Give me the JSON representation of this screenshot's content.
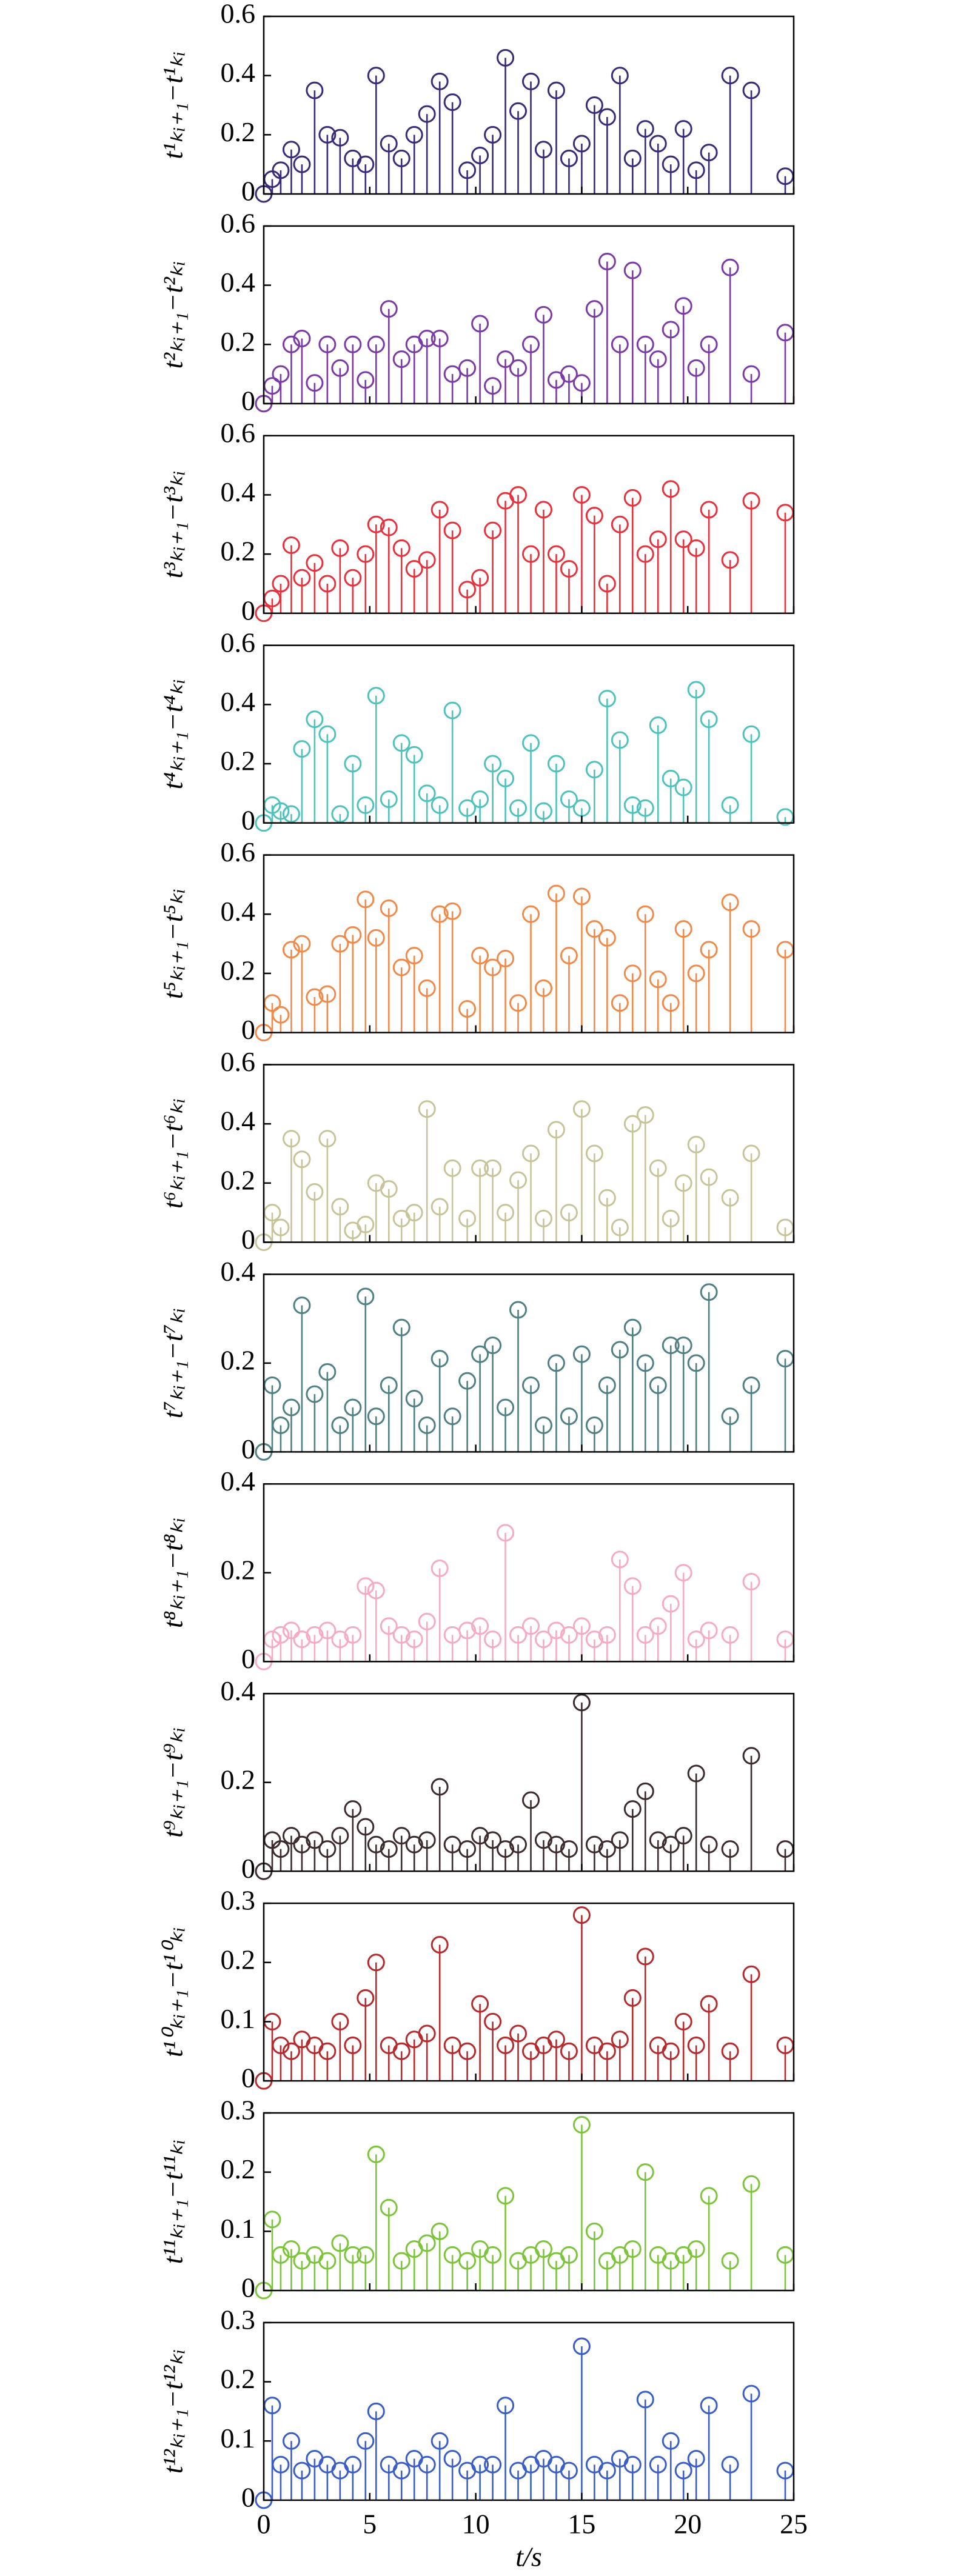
{
  "chart_data": [
    {
      "type": "stem",
      "ylabel": "t¹ₖᵢ₊₁−t¹ₖᵢ",
      "color": "#3b2a7a",
      "xlim": [
        0,
        25
      ],
      "xticks": [
        0,
        5,
        10,
        15,
        20,
        25
      ],
      "ylim": [
        0,
        0.6
      ],
      "yticks": [
        0,
        0.2,
        0.4,
        0.6
      ],
      "x": [
        0,
        0.4,
        0.8,
        1.3,
        1.8,
        2.4,
        3,
        3.6,
        4.2,
        4.8,
        5.3,
        5.9,
        6.5,
        7.1,
        7.7,
        8.3,
        8.9,
        9.6,
        10.2,
        10.8,
        11.4,
        12,
        12.6,
        13.2,
        13.8,
        14.4,
        15,
        15.6,
        16.2,
        16.8,
        17.4,
        18,
        18.6,
        19.2,
        19.8,
        20.4,
        21,
        22,
        23,
        24.6
      ],
      "values": [
        0,
        0.05,
        0.08,
        0.15,
        0.1,
        0.35,
        0.2,
        0.19,
        0.12,
        0.1,
        0.4,
        0.17,
        0.12,
        0.2,
        0.27,
        0.38,
        0.31,
        0.08,
        0.13,
        0.2,
        0.46,
        0.28,
        0.38,
        0.15,
        0.35,
        0.12,
        0.17,
        0.3,
        0.26,
        0.4,
        0.12,
        0.22,
        0.17,
        0.1,
        0.22,
        0.08,
        0.14,
        0.4,
        0.35,
        0.06
      ]
    },
    {
      "type": "stem",
      "ylabel": "t²ₖᵢ₊₁−t²ₖᵢ",
      "color": "#7b3aa6",
      "xlim": [
        0,
        25
      ],
      "xticks": [
        0,
        5,
        10,
        15,
        20,
        25
      ],
      "ylim": [
        0,
        0.6
      ],
      "yticks": [
        0,
        0.2,
        0.4,
        0.6
      ],
      "x": [
        0,
        0.4,
        0.8,
        1.3,
        1.8,
        2.4,
        3,
        3.6,
        4.2,
        4.8,
        5.3,
        5.9,
        6.5,
        7.1,
        7.7,
        8.3,
        8.9,
        9.6,
        10.2,
        10.8,
        11.4,
        12,
        12.6,
        13.2,
        13.8,
        14.4,
        15,
        15.6,
        16.2,
        16.8,
        17.4,
        18,
        18.6,
        19.2,
        19.8,
        20.4,
        21,
        22,
        23,
        24.6
      ],
      "values": [
        0,
        0.06,
        0.1,
        0.2,
        0.22,
        0.07,
        0.2,
        0.12,
        0.2,
        0.08,
        0.2,
        0.32,
        0.15,
        0.2,
        0.22,
        0.22,
        0.1,
        0.12,
        0.27,
        0.06,
        0.15,
        0.12,
        0.2,
        0.3,
        0.08,
        0.1,
        0.07,
        0.32,
        0.48,
        0.2,
        0.45,
        0.2,
        0.15,
        0.25,
        0.33,
        0.12,
        0.2,
        0.46,
        0.1,
        0.24
      ]
    },
    {
      "type": "stem",
      "ylabel": "t³ₖᵢ₊₁−t³ₖᵢ",
      "color": "#e6323c",
      "xlim": [
        0,
        25
      ],
      "xticks": [
        0,
        5,
        10,
        15,
        20,
        25
      ],
      "ylim": [
        0,
        0.6
      ],
      "yticks": [
        0,
        0.2,
        0.4,
        0.6
      ],
      "x": [
        0,
        0.4,
        0.8,
        1.3,
        1.8,
        2.4,
        3,
        3.6,
        4.2,
        4.8,
        5.3,
        5.9,
        6.5,
        7.1,
        7.7,
        8.3,
        8.9,
        9.6,
        10.2,
        10.8,
        11.4,
        12,
        12.6,
        13.2,
        13.8,
        14.4,
        15,
        15.6,
        16.2,
        16.8,
        17.4,
        18,
        18.6,
        19.2,
        19.8,
        20.4,
        21,
        22,
        23,
        24.6
      ],
      "values": [
        0,
        0.05,
        0.1,
        0.23,
        0.12,
        0.17,
        0.1,
        0.22,
        0.12,
        0.2,
        0.3,
        0.29,
        0.22,
        0.15,
        0.18,
        0.35,
        0.28,
        0.08,
        0.12,
        0.28,
        0.38,
        0.4,
        0.2,
        0.35,
        0.2,
        0.15,
        0.4,
        0.33,
        0.1,
        0.3,
        0.39,
        0.2,
        0.25,
        0.42,
        0.25,
        0.22,
        0.35,
        0.18,
        0.38,
        0.34
      ]
    },
    {
      "type": "stem",
      "ylabel": "t⁴ₖᵢ₊₁−t⁴ₖᵢ",
      "color": "#4fc2bc",
      "xlim": [
        0,
        25
      ],
      "xticks": [
        0,
        5,
        10,
        15,
        20,
        25
      ],
      "ylim": [
        0,
        0.6
      ],
      "yticks": [
        0,
        0.2,
        0.4,
        0.6
      ],
      "x": [
        0,
        0.4,
        0.8,
        1.3,
        1.8,
        2.4,
        3,
        3.6,
        4.2,
        4.8,
        5.3,
        5.9,
        6.5,
        7.1,
        7.7,
        8.3,
        8.9,
        9.6,
        10.2,
        10.8,
        11.4,
        12,
        12.6,
        13.2,
        13.8,
        14.4,
        15,
        15.6,
        16.2,
        16.8,
        17.4,
        18,
        18.6,
        19.2,
        19.8,
        20.4,
        21,
        22,
        23,
        24.6
      ],
      "values": [
        0,
        0.06,
        0.04,
        0.03,
        0.25,
        0.35,
        0.3,
        0.03,
        0.2,
        0.06,
        0.43,
        0.08,
        0.27,
        0.23,
        0.1,
        0.06,
        0.38,
        0.05,
        0.08,
        0.2,
        0.15,
        0.05,
        0.27,
        0.04,
        0.2,
        0.08,
        0.05,
        0.18,
        0.42,
        0.28,
        0.06,
        0.05,
        0.33,
        0.15,
        0.12,
        0.45,
        0.35,
        0.06,
        0.3,
        0.02
      ]
    },
    {
      "type": "stem",
      "ylabel": "t⁵ₖᵢ₊₁−t⁵ₖᵢ",
      "color": "#f08a4b",
      "xlim": [
        0,
        25
      ],
      "xticks": [
        0,
        5,
        10,
        15,
        20,
        25
      ],
      "ylim": [
        0,
        0.6
      ],
      "yticks": [
        0,
        0.2,
        0.4,
        0.6
      ],
      "x": [
        0,
        0.4,
        0.8,
        1.3,
        1.8,
        2.4,
        3,
        3.6,
        4.2,
        4.8,
        5.3,
        5.9,
        6.5,
        7.1,
        7.7,
        8.3,
        8.9,
        9.6,
        10.2,
        10.8,
        11.4,
        12,
        12.6,
        13.2,
        13.8,
        14.4,
        15,
        15.6,
        16.2,
        16.8,
        17.4,
        18,
        18.6,
        19.2,
        19.8,
        20.4,
        21,
        22,
        23,
        24.6
      ],
      "values": [
        0,
        0.1,
        0.06,
        0.28,
        0.3,
        0.12,
        0.13,
        0.3,
        0.33,
        0.45,
        0.32,
        0.42,
        0.22,
        0.26,
        0.15,
        0.4,
        0.41,
        0.08,
        0.26,
        0.22,
        0.25,
        0.1,
        0.4,
        0.15,
        0.47,
        0.26,
        0.46,
        0.35,
        0.32,
        0.1,
        0.2,
        0.4,
        0.18,
        0.1,
        0.35,
        0.2,
        0.28,
        0.44,
        0.35,
        0.28
      ]
    },
    {
      "type": "stem",
      "ylabel": "t⁶ₖᵢ₊₁−t⁶ₖᵢ",
      "color": "#c8c49a",
      "xlim": [
        0,
        25
      ],
      "xticks": [
        0,
        5,
        10,
        15,
        20,
        25
      ],
      "ylim": [
        0,
        0.6
      ],
      "yticks": [
        0,
        0.2,
        0.4,
        0.6
      ],
      "x": [
        0,
        0.4,
        0.8,
        1.3,
        1.8,
        2.4,
        3,
        3.6,
        4.2,
        4.8,
        5.3,
        5.9,
        6.5,
        7.1,
        7.7,
        8.3,
        8.9,
        9.6,
        10.2,
        10.8,
        11.4,
        12,
        12.6,
        13.2,
        13.8,
        14.4,
        15,
        15.6,
        16.2,
        16.8,
        17.4,
        18,
        18.6,
        19.2,
        19.8,
        20.4,
        21,
        22,
        23,
        24.6
      ],
      "values": [
        0,
        0.1,
        0.05,
        0.35,
        0.28,
        0.17,
        0.35,
        0.12,
        0.04,
        0.06,
        0.2,
        0.18,
        0.08,
        0.1,
        0.45,
        0.12,
        0.25,
        0.08,
        0.25,
        0.25,
        0.1,
        0.21,
        0.3,
        0.08,
        0.38,
        0.1,
        0.45,
        0.3,
        0.15,
        0.05,
        0.4,
        0.43,
        0.25,
        0.08,
        0.2,
        0.33,
        0.22,
        0.15,
        0.3,
        0.05
      ]
    },
    {
      "type": "stem",
      "ylabel": "t⁷ₖᵢ₊₁−t⁷ₖᵢ",
      "color": "#4f8083",
      "xlim": [
        0,
        25
      ],
      "xticks": [
        0,
        5,
        10,
        15,
        20,
        25
      ],
      "ylim": [
        0,
        0.4
      ],
      "yticks": [
        0,
        0.2,
        0.4
      ],
      "x": [
        0,
        0.4,
        0.8,
        1.3,
        1.8,
        2.4,
        3,
        3.6,
        4.2,
        4.8,
        5.3,
        5.9,
        6.5,
        7.1,
        7.7,
        8.3,
        8.9,
        9.6,
        10.2,
        10.8,
        11.4,
        12,
        12.6,
        13.2,
        13.8,
        14.4,
        15,
        15.6,
        16.2,
        16.8,
        17.4,
        18,
        18.6,
        19.2,
        19.8,
        20.4,
        21,
        22,
        23,
        24.6
      ],
      "values": [
        0,
        0.15,
        0.06,
        0.1,
        0.33,
        0.13,
        0.18,
        0.06,
        0.1,
        0.35,
        0.08,
        0.15,
        0.28,
        0.12,
        0.06,
        0.21,
        0.08,
        0.16,
        0.22,
        0.24,
        0.1,
        0.32,
        0.15,
        0.06,
        0.2,
        0.08,
        0.22,
        0.06,
        0.15,
        0.23,
        0.28,
        0.2,
        0.15,
        0.24,
        0.24,
        0.2,
        0.36,
        0.08,
        0.15,
        0.21
      ]
    },
    {
      "type": "stem",
      "ylabel": "t⁸ₖᵢ₊₁−t⁸ₖᵢ",
      "color": "#f5aac5",
      "xlim": [
        0,
        25
      ],
      "xticks": [
        0,
        5,
        10,
        15,
        20,
        25
      ],
      "ylim": [
        0,
        0.4
      ],
      "yticks": [
        0,
        0.2,
        0.4
      ],
      "x": [
        0,
        0.4,
        0.8,
        1.3,
        1.8,
        2.4,
        3,
        3.6,
        4.2,
        4.8,
        5.3,
        5.9,
        6.5,
        7.1,
        7.7,
        8.3,
        8.9,
        9.6,
        10.2,
        10.8,
        11.4,
        12,
        12.6,
        13.2,
        13.8,
        14.4,
        15,
        15.6,
        16.2,
        16.8,
        17.4,
        18,
        18.6,
        19.2,
        19.8,
        20.4,
        21,
        22,
        23,
        24.6
      ],
      "values": [
        0,
        0.05,
        0.06,
        0.07,
        0.05,
        0.06,
        0.07,
        0.05,
        0.06,
        0.17,
        0.16,
        0.08,
        0.06,
        0.05,
        0.09,
        0.21,
        0.06,
        0.07,
        0.08,
        0.05,
        0.29,
        0.06,
        0.08,
        0.05,
        0.07,
        0.06,
        0.08,
        0.05,
        0.06,
        0.23,
        0.17,
        0.06,
        0.08,
        0.13,
        0.2,
        0.05,
        0.07,
        0.06,
        0.18,
        0.05
      ]
    },
    {
      "type": "stem",
      "ylabel": "t⁹ₖᵢ₊₁−t⁹ₖᵢ",
      "color": "#3b2b2d",
      "xlim": [
        0,
        25
      ],
      "xticks": [
        0,
        5,
        10,
        15,
        20,
        25
      ],
      "ylim": [
        0,
        0.4
      ],
      "yticks": [
        0,
        0.2,
        0.4
      ],
      "x": [
        0,
        0.4,
        0.8,
        1.3,
        1.8,
        2.4,
        3,
        3.6,
        4.2,
        4.8,
        5.3,
        5.9,
        6.5,
        7.1,
        7.7,
        8.3,
        8.9,
        9.6,
        10.2,
        10.8,
        11.4,
        12,
        12.6,
        13.2,
        13.8,
        14.4,
        15,
        15.6,
        16.2,
        16.8,
        17.4,
        18,
        18.6,
        19.2,
        19.8,
        20.4,
        21,
        22,
        23,
        24.6
      ],
      "values": [
        0,
        0.07,
        0.05,
        0.08,
        0.06,
        0.07,
        0.05,
        0.08,
        0.14,
        0.1,
        0.06,
        0.05,
        0.08,
        0.06,
        0.07,
        0.19,
        0.06,
        0.05,
        0.08,
        0.07,
        0.05,
        0.06,
        0.16,
        0.07,
        0.06,
        0.05,
        0.38,
        0.06,
        0.05,
        0.07,
        0.14,
        0.18,
        0.07,
        0.06,
        0.08,
        0.22,
        0.06,
        0.05,
        0.26,
        0.05
      ]
    },
    {
      "type": "stem",
      "ylabel": "t¹⁰ₖᵢ₊₁−t¹⁰ₖᵢ",
      "color": "#b52a2c",
      "xlim": [
        0,
        25
      ],
      "xticks": [
        0,
        5,
        10,
        15,
        20,
        25
      ],
      "ylim": [
        0,
        0.3
      ],
      "yticks": [
        0,
        0.1,
        0.2,
        0.3
      ],
      "x": [
        0,
        0.4,
        0.8,
        1.3,
        1.8,
        2.4,
        3,
        3.6,
        4.2,
        4.8,
        5.3,
        5.9,
        6.5,
        7.1,
        7.7,
        8.3,
        8.9,
        9.6,
        10.2,
        10.8,
        11.4,
        12,
        12.6,
        13.2,
        13.8,
        14.4,
        15,
        15.6,
        16.2,
        16.8,
        17.4,
        18,
        18.6,
        19.2,
        19.8,
        20.4,
        21,
        22,
        23,
        24.6
      ],
      "values": [
        0,
        0.1,
        0.06,
        0.05,
        0.07,
        0.06,
        0.05,
        0.1,
        0.06,
        0.14,
        0.2,
        0.06,
        0.05,
        0.07,
        0.08,
        0.23,
        0.06,
        0.05,
        0.13,
        0.1,
        0.06,
        0.08,
        0.05,
        0.06,
        0.07,
        0.05,
        0.28,
        0.06,
        0.05,
        0.07,
        0.14,
        0.21,
        0.06,
        0.05,
        0.1,
        0.06,
        0.13,
        0.05,
        0.18,
        0.06
      ]
    },
    {
      "type": "stem",
      "ylabel": "t¹¹ₖᵢ₊₁−t¹¹ₖᵢ",
      "color": "#7cc43c",
      "xlim": [
        0,
        25
      ],
      "xticks": [
        0,
        5,
        10,
        15,
        20,
        25
      ],
      "ylim": [
        0,
        0.3
      ],
      "yticks": [
        0,
        0.1,
        0.2,
        0.3
      ],
      "x": [
        0,
        0.4,
        0.8,
        1.3,
        1.8,
        2.4,
        3,
        3.6,
        4.2,
        4.8,
        5.3,
        5.9,
        6.5,
        7.1,
        7.7,
        8.3,
        8.9,
        9.6,
        10.2,
        10.8,
        11.4,
        12,
        12.6,
        13.2,
        13.8,
        14.4,
        15,
        15.6,
        16.2,
        16.8,
        17.4,
        18,
        18.6,
        19.2,
        19.8,
        20.4,
        21,
        22,
        23,
        24.6
      ],
      "values": [
        0,
        0.12,
        0.06,
        0.07,
        0.05,
        0.06,
        0.05,
        0.08,
        0.06,
        0.06,
        0.23,
        0.14,
        0.05,
        0.07,
        0.08,
        0.1,
        0.06,
        0.05,
        0.07,
        0.06,
        0.16,
        0.05,
        0.06,
        0.07,
        0.05,
        0.06,
        0.28,
        0.1,
        0.05,
        0.06,
        0.07,
        0.2,
        0.06,
        0.05,
        0.06,
        0.07,
        0.16,
        0.05,
        0.18,
        0.06
      ]
    },
    {
      "type": "stem",
      "ylabel": "t¹²ₖᵢ₊₁−t¹²ₖᵢ",
      "color": "#3a5ec6",
      "xlim": [
        0,
        25
      ],
      "xticks": [
        0,
        5,
        10,
        15,
        20,
        25
      ],
      "ylim": [
        0,
        0.3
      ],
      "yticks": [
        0,
        0.1,
        0.2,
        0.3
      ],
      "xlabel": "t/s",
      "x": [
        0,
        0.4,
        0.8,
        1.3,
        1.8,
        2.4,
        3,
        3.6,
        4.2,
        4.8,
        5.3,
        5.9,
        6.5,
        7.1,
        7.7,
        8.3,
        8.9,
        9.6,
        10.2,
        10.8,
        11.4,
        12,
        12.6,
        13.2,
        13.8,
        14.4,
        15,
        15.6,
        16.2,
        16.8,
        17.4,
        18,
        18.6,
        19.2,
        19.8,
        20.4,
        21,
        22,
        23,
        24.6
      ],
      "values": [
        0,
        0.16,
        0.06,
        0.1,
        0.05,
        0.07,
        0.06,
        0.05,
        0.06,
        0.1,
        0.15,
        0.06,
        0.05,
        0.07,
        0.06,
        0.1,
        0.07,
        0.05,
        0.06,
        0.06,
        0.16,
        0.05,
        0.06,
        0.07,
        0.06,
        0.05,
        0.26,
        0.06,
        0.05,
        0.07,
        0.06,
        0.17,
        0.06,
        0.1,
        0.05,
        0.07,
        0.16,
        0.06,
        0.18,
        0.05
      ]
    }
  ]
}
